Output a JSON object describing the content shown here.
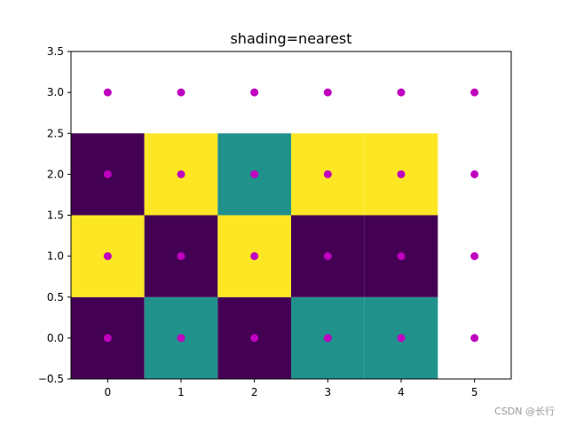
{
  "chart_data": {
    "type": "heatmap",
    "title": "shading=nearest",
    "xlabel": "",
    "ylabel": "",
    "xlim": [
      -0.5,
      5.5
    ],
    "ylim": [
      -0.5,
      3.5
    ],
    "x_ticks": [
      0,
      1,
      2,
      3,
      4,
      5
    ],
    "y_ticks": [
      -0.5,
      0.0,
      0.5,
      1.0,
      1.5,
      2.0,
      2.5,
      3.0,
      3.5
    ],
    "x_tick_labels": [
      "0",
      "1",
      "2",
      "3",
      "4",
      "5"
    ],
    "y_tick_labels": [
      "−0.5",
      "0.0",
      "0.5",
      "1.0",
      "1.5",
      "2.0",
      "2.5",
      "3.0",
      "3.5"
    ],
    "colormap": {
      "0": "#440154",
      "1": "#21918c",
      "2": "#fde725"
    },
    "cells": {
      "x": [
        0,
        1,
        2,
        3,
        4
      ],
      "y": [
        0,
        1,
        2
      ],
      "values": [
        [
          0,
          1,
          0,
          1,
          1
        ],
        [
          2,
          0,
          2,
          0,
          0
        ],
        [
          0,
          2,
          1,
          2,
          2
        ]
      ]
    },
    "points": {
      "color": "#bf00bf",
      "x": [
        0,
        1,
        2,
        3,
        4,
        5
      ],
      "y": [
        0,
        1,
        2,
        3
      ]
    },
    "grid": false
  },
  "watermark": "CSDN @长行"
}
